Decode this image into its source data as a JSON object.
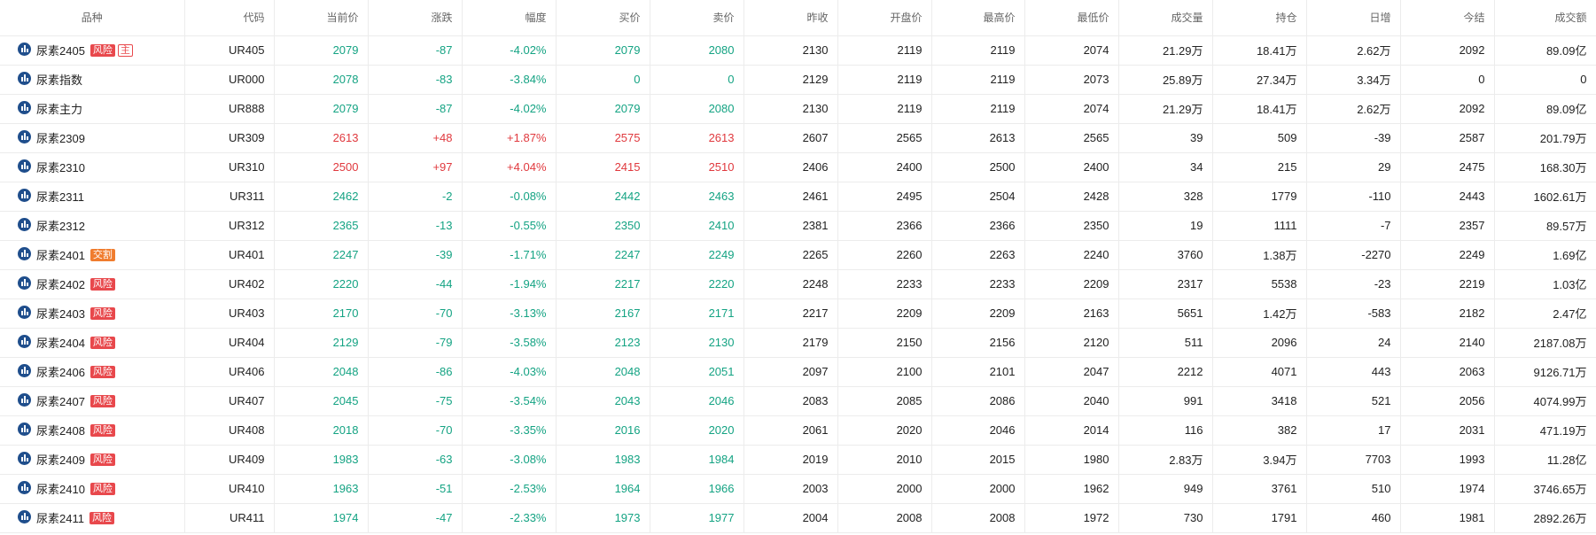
{
  "columns": [
    "品种",
    "代码",
    "当前价",
    "涨跌",
    "幅度",
    "买价",
    "卖价",
    "昨收",
    "开盘价",
    "最高价",
    "最低价",
    "成交量",
    "持仓",
    "日增",
    "今结",
    "成交额"
  ],
  "colors": {
    "up": "#e0393e",
    "down": "#14a383",
    "risk_badge": "#e8484c",
    "delivery_badge": "#f07c2e",
    "chart_icon": "#1f4e8c"
  },
  "icons": {
    "row_chart": "chart-bars-icon"
  },
  "rows": [
    {
      "name": "尿素2405",
      "badges": [
        {
          "text": "风险",
          "type": "risk"
        },
        {
          "text": "主",
          "type": "main-flag"
        }
      ],
      "trend": "down",
      "code": "UR405",
      "price": "2079",
      "change": "-87",
      "pct": "-4.02%",
      "bid": "2079",
      "ask": "2080",
      "prev": "2130",
      "open": "2119",
      "high": "2119",
      "low": "2074",
      "volume": "21.29万",
      "oi": "18.41万",
      "oi_chg": "2.62万",
      "settle": "2092",
      "turnover": "89.09亿"
    },
    {
      "name": "尿素指数",
      "badges": [],
      "trend": "down",
      "code": "UR000",
      "price": "2078",
      "change": "-83",
      "pct": "-3.84%",
      "bid": "0",
      "ask": "0",
      "prev": "2129",
      "open": "2119",
      "high": "2119",
      "low": "2073",
      "volume": "25.89万",
      "oi": "27.34万",
      "oi_chg": "3.34万",
      "settle": "0",
      "turnover": "0"
    },
    {
      "name": "尿素主力",
      "badges": [],
      "trend": "down",
      "code": "UR888",
      "price": "2079",
      "change": "-87",
      "pct": "-4.02%",
      "bid": "2079",
      "ask": "2080",
      "prev": "2130",
      "open": "2119",
      "high": "2119",
      "low": "2074",
      "volume": "21.29万",
      "oi": "18.41万",
      "oi_chg": "2.62万",
      "settle": "2092",
      "turnover": "89.09亿"
    },
    {
      "name": "尿素2309",
      "badges": [],
      "trend": "up",
      "code": "UR309",
      "price": "2613",
      "change": "+48",
      "pct": "+1.87%",
      "bid": "2575",
      "ask": "2613",
      "prev": "2607",
      "open": "2565",
      "high": "2613",
      "low": "2565",
      "volume": "39",
      "oi": "509",
      "oi_chg": "-39",
      "settle": "2587",
      "turnover": "201.79万"
    },
    {
      "name": "尿素2310",
      "badges": [],
      "trend": "up",
      "code": "UR310",
      "price": "2500",
      "change": "+97",
      "pct": "+4.04%",
      "bid": "2415",
      "ask": "2510",
      "prev": "2406",
      "open": "2400",
      "high": "2500",
      "low": "2400",
      "volume": "34",
      "oi": "215",
      "oi_chg": "29",
      "settle": "2475",
      "turnover": "168.30万"
    },
    {
      "name": "尿素2311",
      "badges": [],
      "trend": "down",
      "code": "UR311",
      "price": "2462",
      "change": "-2",
      "pct": "-0.08%",
      "bid": "2442",
      "ask": "2463",
      "prev": "2461",
      "open": "2495",
      "high": "2504",
      "low": "2428",
      "volume": "328",
      "oi": "1779",
      "oi_chg": "-110",
      "settle": "2443",
      "turnover": "1602.61万"
    },
    {
      "name": "尿素2312",
      "badges": [],
      "trend": "down",
      "code": "UR312",
      "price": "2365",
      "change": "-13",
      "pct": "-0.55%",
      "bid": "2350",
      "ask": "2410",
      "prev": "2381",
      "open": "2366",
      "high": "2366",
      "low": "2350",
      "volume": "19",
      "oi": "1111",
      "oi_chg": "-7",
      "settle": "2357",
      "turnover": "89.57万"
    },
    {
      "name": "尿素2401",
      "badges": [
        {
          "text": "交割",
          "type": "deliv"
        }
      ],
      "trend": "down",
      "code": "UR401",
      "price": "2247",
      "change": "-39",
      "pct": "-1.71%",
      "bid": "2247",
      "ask": "2249",
      "prev": "2265",
      "open": "2260",
      "high": "2263",
      "low": "2240",
      "volume": "3760",
      "oi": "1.38万",
      "oi_chg": "-2270",
      "settle": "2249",
      "turnover": "1.69亿"
    },
    {
      "name": "尿素2402",
      "badges": [
        {
          "text": "风险",
          "type": "risk"
        }
      ],
      "trend": "down",
      "code": "UR402",
      "price": "2220",
      "change": "-44",
      "pct": "-1.94%",
      "bid": "2217",
      "ask": "2220",
      "prev": "2248",
      "open": "2233",
      "high": "2233",
      "low": "2209",
      "volume": "2317",
      "oi": "5538",
      "oi_chg": "-23",
      "settle": "2219",
      "turnover": "1.03亿"
    },
    {
      "name": "尿素2403",
      "badges": [
        {
          "text": "风险",
          "type": "risk"
        }
      ],
      "trend": "down",
      "code": "UR403",
      "price": "2170",
      "change": "-70",
      "pct": "-3.13%",
      "bid": "2167",
      "ask": "2171",
      "prev": "2217",
      "open": "2209",
      "high": "2209",
      "low": "2163",
      "volume": "5651",
      "oi": "1.42万",
      "oi_chg": "-583",
      "settle": "2182",
      "turnover": "2.47亿"
    },
    {
      "name": "尿素2404",
      "badges": [
        {
          "text": "风险",
          "type": "risk"
        }
      ],
      "trend": "down",
      "code": "UR404",
      "price": "2129",
      "change": "-79",
      "pct": "-3.58%",
      "bid": "2123",
      "ask": "2130",
      "prev": "2179",
      "open": "2150",
      "high": "2156",
      "low": "2120",
      "volume": "511",
      "oi": "2096",
      "oi_chg": "24",
      "settle": "2140",
      "turnover": "2187.08万"
    },
    {
      "name": "尿素2406",
      "badges": [
        {
          "text": "风险",
          "type": "risk"
        }
      ],
      "trend": "down",
      "code": "UR406",
      "price": "2048",
      "change": "-86",
      "pct": "-4.03%",
      "bid": "2048",
      "ask": "2051",
      "prev": "2097",
      "open": "2100",
      "high": "2101",
      "low": "2047",
      "volume": "2212",
      "oi": "4071",
      "oi_chg": "443",
      "settle": "2063",
      "turnover": "9126.71万"
    },
    {
      "name": "尿素2407",
      "badges": [
        {
          "text": "风险",
          "type": "risk"
        }
      ],
      "trend": "down",
      "code": "UR407",
      "price": "2045",
      "change": "-75",
      "pct": "-3.54%",
      "bid": "2043",
      "ask": "2046",
      "prev": "2083",
      "open": "2085",
      "high": "2086",
      "low": "2040",
      "volume": "991",
      "oi": "3418",
      "oi_chg": "521",
      "settle": "2056",
      "turnover": "4074.99万"
    },
    {
      "name": "尿素2408",
      "badges": [
        {
          "text": "风险",
          "type": "risk"
        }
      ],
      "trend": "down",
      "code": "UR408",
      "price": "2018",
      "change": "-70",
      "pct": "-3.35%",
      "bid": "2016",
      "ask": "2020",
      "prev": "2061",
      "open": "2020",
      "high": "2046",
      "low": "2014",
      "volume": "116",
      "oi": "382",
      "oi_chg": "17",
      "settle": "2031",
      "turnover": "471.19万"
    },
    {
      "name": "尿素2409",
      "badges": [
        {
          "text": "风险",
          "type": "risk"
        }
      ],
      "trend": "down",
      "code": "UR409",
      "price": "1983",
      "change": "-63",
      "pct": "-3.08%",
      "bid": "1983",
      "ask": "1984",
      "prev": "2019",
      "open": "2010",
      "high": "2015",
      "low": "1980",
      "volume": "2.83万",
      "oi": "3.94万",
      "oi_chg": "7703",
      "settle": "1993",
      "turnover": "11.28亿"
    },
    {
      "name": "尿素2410",
      "badges": [
        {
          "text": "风险",
          "type": "risk"
        }
      ],
      "trend": "down",
      "code": "UR410",
      "price": "1963",
      "change": "-51",
      "pct": "-2.53%",
      "bid": "1964",
      "ask": "1966",
      "prev": "2003",
      "open": "2000",
      "high": "2000",
      "low": "1962",
      "volume": "949",
      "oi": "3761",
      "oi_chg": "510",
      "settle": "1974",
      "turnover": "3746.65万"
    },
    {
      "name": "尿素2411",
      "badges": [
        {
          "text": "风险",
          "type": "risk"
        }
      ],
      "trend": "down",
      "code": "UR411",
      "price": "1974",
      "change": "-47",
      "pct": "-2.33%",
      "bid": "1973",
      "ask": "1977",
      "prev": "2004",
      "open": "2008",
      "high": "2008",
      "low": "1972",
      "volume": "730",
      "oi": "1791",
      "oi_chg": "460",
      "settle": "1981",
      "turnover": "2892.26万"
    }
  ]
}
